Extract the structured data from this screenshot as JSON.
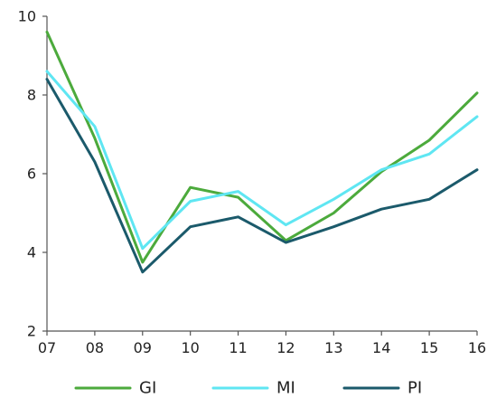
{
  "chart_data": {
    "type": "line",
    "title": "",
    "xlabel": "",
    "ylabel": "",
    "categories": [
      "07",
      "08",
      "09",
      "10",
      "11",
      "12",
      "13",
      "14",
      "15",
      "16"
    ],
    "ylim": [
      2,
      10
    ],
    "yticks": [
      "2",
      "4",
      "6",
      "8",
      "10"
    ],
    "grid": false,
    "legend_position": "bottom",
    "series": [
      {
        "name": "GI",
        "color": "#4caa3c",
        "values": [
          9.6,
          6.9,
          3.75,
          5.65,
          5.4,
          4.3,
          5.0,
          6.05,
          6.85,
          8.05
        ]
      },
      {
        "name": "MI",
        "color": "#5fe6f2",
        "values": [
          8.6,
          7.2,
          4.1,
          5.3,
          5.55,
          4.7,
          5.35,
          6.1,
          6.5,
          7.45
        ]
      },
      {
        "name": "PI",
        "color": "#1b5a6b",
        "values": [
          8.4,
          6.3,
          3.5,
          4.65,
          4.9,
          4.25,
          4.65,
          5.1,
          5.35,
          6.1
        ]
      }
    ]
  }
}
